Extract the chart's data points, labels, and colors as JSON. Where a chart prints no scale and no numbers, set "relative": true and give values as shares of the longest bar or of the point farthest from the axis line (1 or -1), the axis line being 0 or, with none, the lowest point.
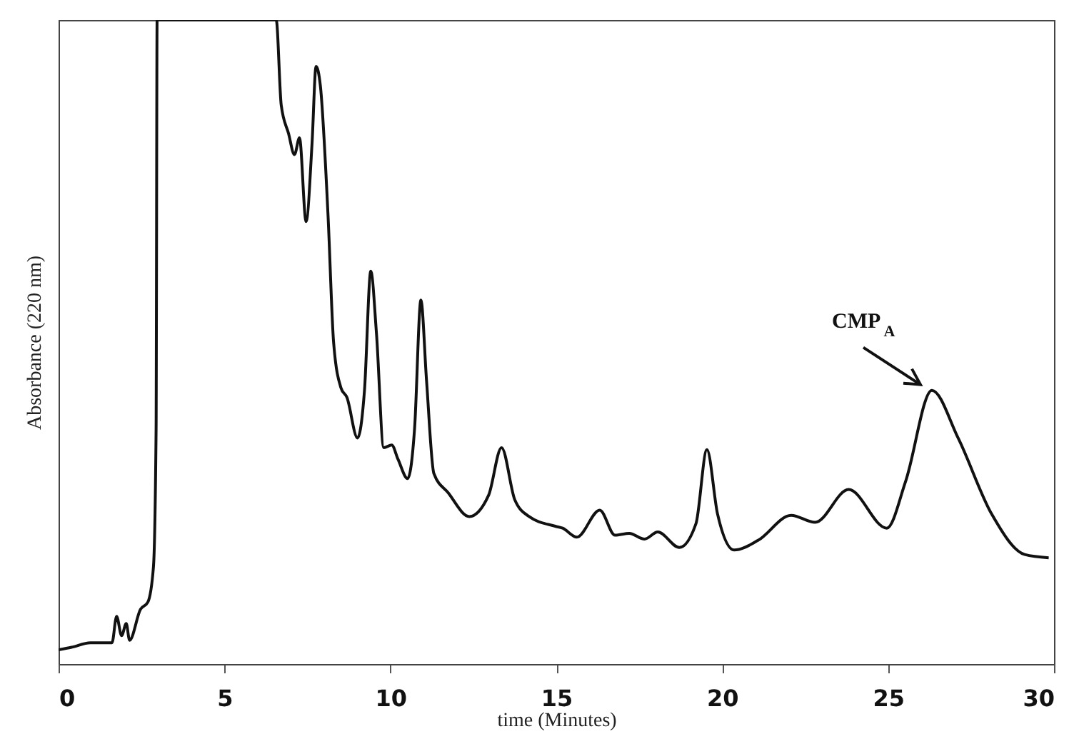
{
  "chart_data": {
    "type": "line",
    "relative": true,
    "xlabel": "time (Minutes)",
    "ylabel": "Absorbance (220 nm)",
    "xlim": [
      0,
      30
    ],
    "xticks": [
      0,
      5,
      10,
      15,
      20,
      25,
      30
    ],
    "annotations": [
      {
        "text": "CMP$_{A}$",
        "x": 26.32,
        "y": 0.425
      }
    ],
    "series": [
      {
        "color": "#111111",
        "x": [
          0,
          0.39,
          0.96,
          1.61,
          1.75,
          1.9,
          2.04,
          2.14,
          2.47,
          2.69,
          2.86,
          2.94,
          2.97,
          6.56,
          6.71,
          6.93,
          7.11,
          7.26,
          7.46,
          7.64,
          7.76,
          7.89,
          8.12,
          8.29,
          8.51,
          8.69,
          9.01,
          9.22,
          9.41,
          9.58,
          9.8,
          10.04,
          10.23,
          10.52,
          10.73,
          10.92,
          11.09,
          11.31,
          11.74,
          12.38,
          12.96,
          13.35,
          13.75,
          14.18,
          14.97,
          15.19,
          15.62,
          16.31,
          16.77,
          17.2,
          17.66,
          18.06,
          18.71,
          19.21,
          19.54,
          19.86,
          20.36,
          21.08,
          22.08,
          22.8,
          23.81,
          24.96,
          25.53,
          26.32,
          27.11,
          28.12,
          29.12,
          29.84
        ],
        "values": [
          0.022,
          0.026,
          0.033,
          0.033,
          0.074,
          0.044,
          0.063,
          0.037,
          0.085,
          0.096,
          0.151,
          0.366,
          1,
          1,
          0.868,
          0.824,
          0.791,
          0.817,
          0.687,
          0.809,
          0.928,
          0.898,
          0.698,
          0.499,
          0.429,
          0.414,
          0.351,
          0.425,
          0.61,
          0.514,
          0.336,
          0.34,
          0.318,
          0.288,
          0.366,
          0.565,
          0.44,
          0.296,
          0.266,
          0.229,
          0.262,
          0.336,
          0.255,
          0.229,
          0.214,
          0.211,
          0.197,
          0.239,
          0.2,
          0.203,
          0.194,
          0.205,
          0.181,
          0.218,
          0.333,
          0.233,
          0.177,
          0.192,
          0.231,
          0.22,
          0.271,
          0.211,
          0.284,
          0.425,
          0.351,
          0.233,
          0.17,
          0.165
        ]
      }
    ]
  }
}
